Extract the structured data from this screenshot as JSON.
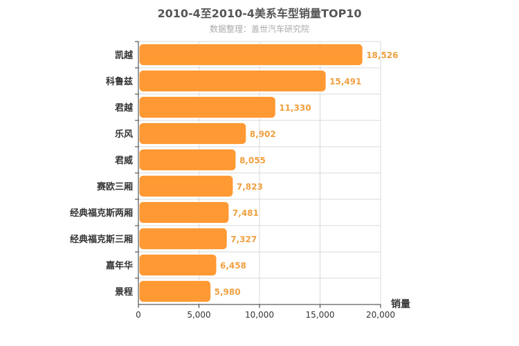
{
  "chart_data": {
    "type": "bar",
    "orientation": "horizontal",
    "title": "2010-4至2010-4美系车型销量TOP10",
    "subtitle": "数据整理：盖世汽车研究院",
    "categories": [
      "凯越",
      "科鲁兹",
      "君越",
      "乐风",
      "君威",
      "赛欧三厢",
      "经典福克斯两厢",
      "经典福克斯三厢",
      "嘉年华",
      "景程"
    ],
    "values": [
      18526,
      15491,
      11330,
      8902,
      8055,
      7823,
      7481,
      7327,
      6458,
      5980
    ],
    "value_labels": [
      "18,526",
      "15,491",
      "11,330",
      "8,902",
      "8,055",
      "7,823",
      "7,481",
      "7,327",
      "6,458",
      "5,980"
    ],
    "xlabel": "销量",
    "ylabel": "",
    "xlim": [
      0,
      20000
    ],
    "ticks": [
      0,
      5000,
      10000,
      15000,
      20000
    ],
    "tick_labels": [
      "0",
      "5,000",
      "10,000",
      "15,000",
      "20,000"
    ],
    "grid": true,
    "bar_color": "#ff9933",
    "label_color": "#f0a040"
  }
}
